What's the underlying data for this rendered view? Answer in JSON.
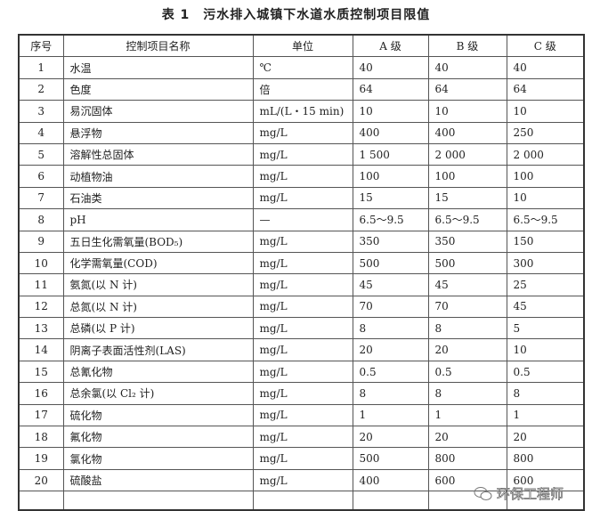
{
  "title": "表 1　污水排入城镇下水道水质控制项目限值",
  "headers": [
    "序号",
    "控制项目名称",
    "单位",
    "A 级",
    "B 级",
    "C 级"
  ],
  "rows": [
    [
      "1",
      "水温",
      "℃",
      "40",
      "40",
      "40"
    ],
    [
      "2",
      "色度",
      "倍",
      "64",
      "64",
      "64"
    ],
    [
      "3",
      "易沉固体",
      "mL/(L・15 min)",
      "10",
      "10",
      "10"
    ],
    [
      "4",
      "悬浮物",
      "mg/L",
      "400",
      "400",
      "250"
    ],
    [
      "5",
      "溶解性总固体",
      "mg/L",
      "1 500",
      "2 000",
      "2 000"
    ],
    [
      "6",
      "动植物油",
      "mg/L",
      "100",
      "100",
      "100"
    ],
    [
      "7",
      "石油类",
      "mg/L",
      "15",
      "15",
      "10"
    ],
    [
      "8",
      "pH",
      "—",
      "6.5～9.5",
      "6.5～9.5",
      "6.5～9.5"
    ],
    [
      "9",
      "五日生化需氧量(BOD₅)",
      "mg/L",
      "350",
      "350",
      "150"
    ],
    [
      "10",
      "化学需氧量(COD)",
      "mg/L",
      "500",
      "500",
      "300"
    ],
    [
      "11",
      "氨氮(以 N 计)",
      "mg/L",
      "45",
      "45",
      "25"
    ],
    [
      "12",
      "总氮(以 N 计)",
      "mg/L",
      "70",
      "70",
      "45"
    ],
    [
      "13",
      "总磷(以 P 计)",
      "mg/L",
      "8",
      "8",
      "5"
    ],
    [
      "14",
      "阴离子表面活性剂(LAS)",
      "mg/L",
      "20",
      "20",
      "10"
    ],
    [
      "15",
      "总氰化物",
      "mg/L",
      "0.5",
      "0.5",
      "0.5"
    ],
    [
      "16",
      "总余氯(以 Cl₂ 计)",
      "mg/L",
      "8",
      "8",
      "8"
    ],
    [
      "17",
      "硫化物",
      "mg/L",
      "1",
      "1",
      "1"
    ],
    [
      "18",
      "氟化物",
      "mg/L",
      "20",
      "20",
      "20"
    ],
    [
      "19",
      "氯化物",
      "mg/L",
      "500",
      "800",
      "800"
    ],
    [
      "20",
      "硫酸盐",
      "mg/L",
      "400",
      "600",
      "600"
    ]
  ],
  "watermark": {
    "text": "环保工程师",
    "icon": "wechat-icon"
  }
}
